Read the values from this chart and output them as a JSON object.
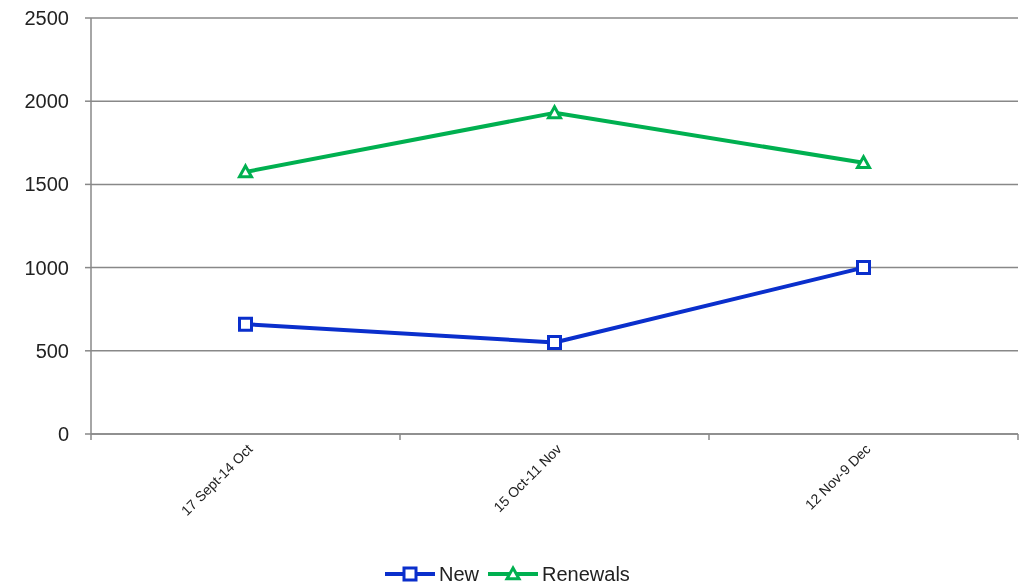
{
  "chart_data": {
    "type": "line",
    "categories": [
      "17 Sept-14 Oct",
      "15 Oct-11 Nov",
      "12 Nov-9 Dec"
    ],
    "series": [
      {
        "name": "New",
        "color": "#0a2fcc",
        "values": [
          660,
          550,
          1000
        ],
        "marker": "square"
      },
      {
        "name": "Renewals",
        "color": "#00b050",
        "values": [
          1575,
          1930,
          1630
        ],
        "marker": "triangle"
      }
    ],
    "ylim": [
      0,
      2500
    ],
    "yticks": [
      0,
      500,
      1000,
      1500,
      2000,
      2500
    ],
    "grid": "y",
    "legend": "bottom"
  }
}
